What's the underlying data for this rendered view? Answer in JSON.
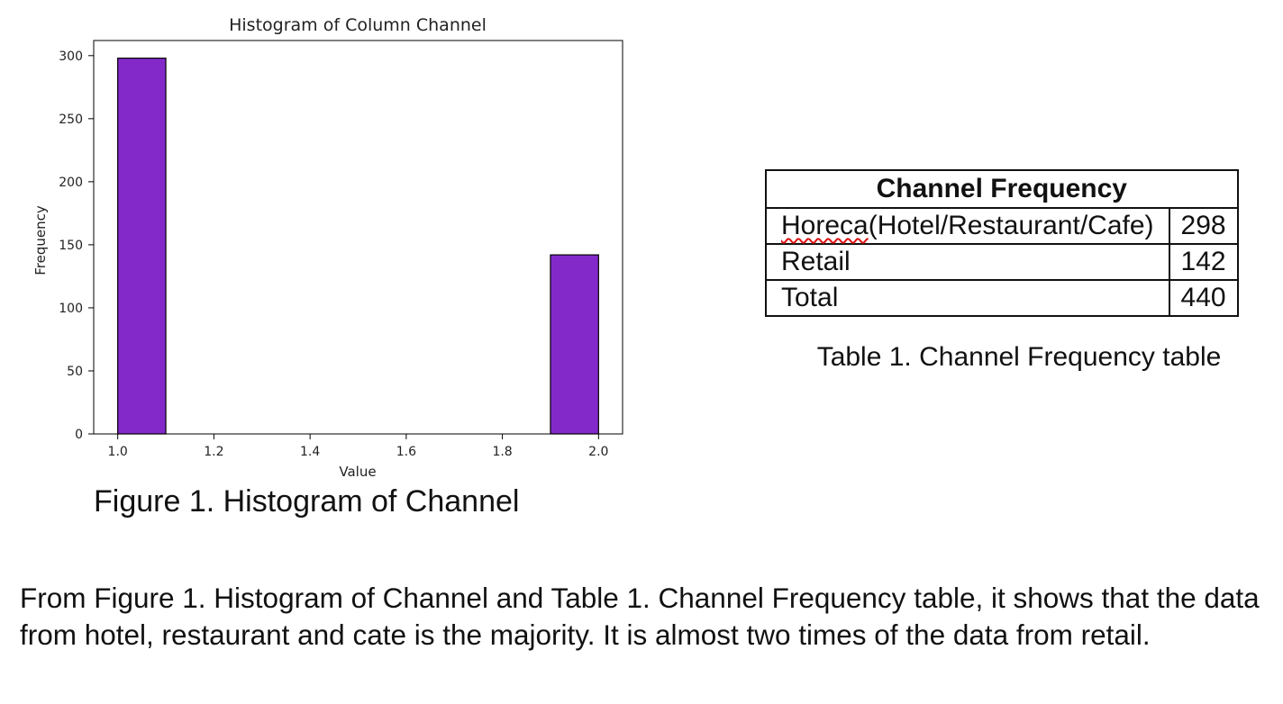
{
  "chart_data": {
    "type": "bar",
    "title": "Histogram of Column Channel",
    "xlabel": "Value",
    "ylabel": "Frequency",
    "xlim": [
      0.95,
      2.05
    ],
    "ylim": [
      0,
      312
    ],
    "xticks": [
      "1.0",
      "1.2",
      "1.4",
      "1.6",
      "1.8",
      "2.0"
    ],
    "yticks": [
      "0",
      "50",
      "100",
      "150",
      "200",
      "250",
      "300"
    ],
    "bins": [
      {
        "x0": 1.0,
        "x1": 1.1,
        "value": 298
      },
      {
        "x0": 1.9,
        "x1": 2.0,
        "value": 142
      }
    ],
    "bar_color": "#8329c9",
    "grid": false
  },
  "figure_caption": "Figure 1. Histogram of Channel",
  "table": {
    "header": "Channel Frequency",
    "rows": [
      {
        "label_misspelled": "Horeca",
        "label_rest": "(Hotel/Restaurant/Cafe)",
        "value": "298"
      },
      {
        "label": "Retail",
        "value": "142"
      },
      {
        "label": "Total",
        "value": "440"
      }
    ]
  },
  "table_caption": "Table 1. Channel Frequency table",
  "paragraph": "From Figure 1. Histogram of Channel and Table 1. Channel Frequency table, it shows that the data from hotel, restaurant and cate is the majority. It is almost two times of the data from retail."
}
